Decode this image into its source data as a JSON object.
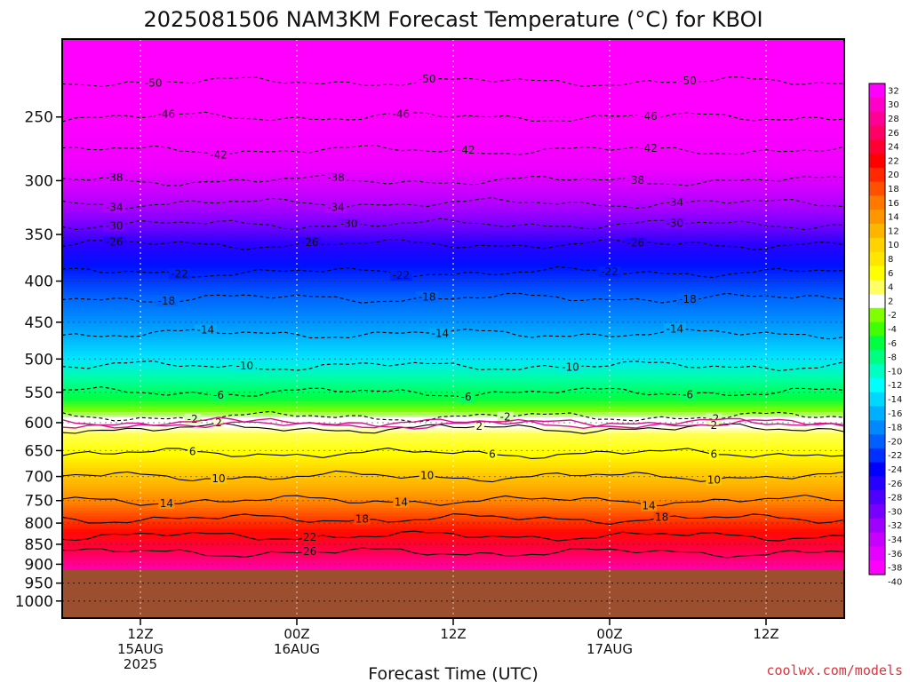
{
  "chart_data": {
    "type": "heatmap",
    "title": "2025081506 NAM3KM Forecast Temperature (°C) for KBOI",
    "xlabel": "Forecast Time (UTC)",
    "credit": "coolwx.com/models",
    "y_ticks": [
      "250",
      "300",
      "350",
      "400",
      "450",
      "500",
      "550",
      "600",
      "650",
      "700",
      "750",
      "800",
      "850",
      "900",
      "950",
      "1000"
    ],
    "y_tick_values": [
      250,
      300,
      350,
      400,
      450,
      500,
      550,
      600,
      650,
      700,
      750,
      800,
      850,
      900,
      950,
      1000
    ],
    "ylim": [
      1050,
      200
    ],
    "x_ticks": [
      {
        "line1": "12Z",
        "line2": "15AUG",
        "line3": "2025"
      },
      {
        "line1": "00Z",
        "line2": "16AUG",
        "line3": ""
      },
      {
        "line1": "12Z",
        "line2": "",
        "line3": ""
      },
      {
        "line1": "00Z",
        "line2": "17AUG",
        "line3": ""
      },
      {
        "line1": "12Z",
        "line2": "",
        "line3": ""
      }
    ],
    "x_tick_hours": [
      6,
      18,
      30,
      42,
      54
    ],
    "xlim_hours": [
      0,
      60
    ],
    "terrain_pressure": 915,
    "colorbar_ticks": [
      "32",
      "30",
      "28",
      "26",
      "24",
      "22",
      "20",
      "18",
      "16",
      "14",
      "12",
      "10",
      "8",
      "6",
      "4",
      "2",
      "-2",
      "-4",
      "-6",
      "-8",
      "-10",
      "-12",
      "-14",
      "-16",
      "-18",
      "-20",
      "-22",
      "-24",
      "-26",
      "-28",
      "-30",
      "-32",
      "-34",
      "-36",
      "-38",
      "-40"
    ],
    "colorbar_colors": [
      "#ff00ff",
      "#ff00c8",
      "#ff0096",
      "#ff0064",
      "#ff0032",
      "#ff0000",
      "#ff2800",
      "#ff5000",
      "#ff7800",
      "#ff9600",
      "#ffb400",
      "#ffd200",
      "#ffe600",
      "#ffff00",
      "#ffff64",
      "#ffffff",
      "#80ff00",
      "#40ff00",
      "#00ff40",
      "#00ff80",
      "#00ffc0",
      "#00ffff",
      "#00d8ff",
      "#00b0ff",
      "#0088ff",
      "#0060ff",
      "#0030ff",
      "#0000ff",
      "#2800ff",
      "#5000ff",
      "#7800ff",
      "#a000ff",
      "#c800ff",
      "#e600ff",
      "#ff00ff"
    ],
    "temperature_profile": [
      {
        "p": 200,
        "t": -54
      },
      {
        "p": 220,
        "t": -51
      },
      {
        "p": 250,
        "t": -46
      },
      {
        "p": 275,
        "t": -42
      },
      {
        "p": 300,
        "t": -38
      },
      {
        "p": 320,
        "t": -34
      },
      {
        "p": 340,
        "t": -30
      },
      {
        "p": 360,
        "t": -26
      },
      {
        "p": 390,
        "t": -22
      },
      {
        "p": 420,
        "t": -18
      },
      {
        "p": 465,
        "t": -14
      },
      {
        "p": 510,
        "t": -10
      },
      {
        "p": 550,
        "t": -6
      },
      {
        "p": 590,
        "t": -2
      },
      {
        "p": 610,
        "t": 2
      },
      {
        "p": 655,
        "t": 6
      },
      {
        "p": 700,
        "t": 10
      },
      {
        "p": 750,
        "t": 14
      },
      {
        "p": 790,
        "t": 18
      },
      {
        "p": 830,
        "t": 22
      },
      {
        "p": 870,
        "t": 26
      },
      {
        "p": 910,
        "t": 30
      }
    ],
    "contours": [
      {
        "level": -50,
        "dashed": true,
        "labels": [
          {
            "h": 7,
            "text": "-50"
          },
          {
            "h": 28,
            "text": "-50"
          },
          {
            "h": 48,
            "text": "-50"
          }
        ]
      },
      {
        "level": -46,
        "dashed": true,
        "labels": [
          {
            "h": 8,
            "text": "-46"
          },
          {
            "h": 26,
            "text": "-46"
          },
          {
            "h": 45,
            "text": "-46"
          }
        ]
      },
      {
        "level": -42,
        "dashed": true,
        "labels": [
          {
            "h": 12,
            "text": "-42"
          },
          {
            "h": 31,
            "text": "-42"
          },
          {
            "h": 45,
            "text": "-42"
          }
        ]
      },
      {
        "level": -38,
        "dashed": true,
        "labels": [
          {
            "h": 4,
            "text": "-38"
          },
          {
            "h": 21,
            "text": "-38"
          },
          {
            "h": 44,
            "text": "-38"
          }
        ]
      },
      {
        "level": -34,
        "dashed": true,
        "labels": [
          {
            "h": 4,
            "text": "-34"
          },
          {
            "h": 21,
            "text": "-34"
          },
          {
            "h": 47,
            "text": "-34"
          }
        ]
      },
      {
        "level": -30,
        "dashed": true,
        "labels": [
          {
            "h": 4,
            "text": "-30"
          },
          {
            "h": 22,
            "text": "-30"
          },
          {
            "h": 47,
            "text": "-30"
          }
        ]
      },
      {
        "level": -26,
        "dashed": true,
        "labels": [
          {
            "h": 4,
            "text": "-26"
          },
          {
            "h": 19,
            "text": "-26"
          },
          {
            "h": 44,
            "text": "-26"
          }
        ]
      },
      {
        "level": -22,
        "dashed": true,
        "labels": [
          {
            "h": 9,
            "text": "-22"
          },
          {
            "h": 26,
            "text": "-22"
          },
          {
            "h": 42,
            "text": "-22"
          }
        ]
      },
      {
        "level": -18,
        "dashed": true,
        "labels": [
          {
            "h": 8,
            "text": "-18"
          },
          {
            "h": 28,
            "text": "-18"
          },
          {
            "h": 48,
            "text": "-18"
          }
        ]
      },
      {
        "level": -14,
        "dashed": true,
        "labels": [
          {
            "h": 11,
            "text": "-14"
          },
          {
            "h": 29,
            "text": "-14"
          },
          {
            "h": 47,
            "text": "-14"
          }
        ]
      },
      {
        "level": -10,
        "dashed": true,
        "labels": [
          {
            "h": 14,
            "text": "-10"
          },
          {
            "h": 39,
            "text": "-10"
          }
        ]
      },
      {
        "level": -6,
        "dashed": true,
        "labels": [
          {
            "h": 12,
            "text": "-6"
          },
          {
            "h": 31,
            "text": "-6"
          },
          {
            "h": 48,
            "text": "-6"
          }
        ]
      },
      {
        "level": -2,
        "dashed": true,
        "labels": [
          {
            "h": 10,
            "text": "-2"
          },
          {
            "h": 34,
            "text": "-2"
          },
          {
            "h": 50,
            "text": "-2"
          }
        ]
      },
      {
        "level": 2,
        "dashed": false,
        "labels": [
          {
            "h": 12,
            "text": "2"
          },
          {
            "h": 32,
            "text": "2"
          },
          {
            "h": 50,
            "text": "2"
          }
        ]
      },
      {
        "level": 6,
        "dashed": false,
        "labels": [
          {
            "h": 10,
            "text": "6"
          },
          {
            "h": 33,
            "text": "6"
          },
          {
            "h": 50,
            "text": "6"
          }
        ]
      },
      {
        "level": 10,
        "dashed": false,
        "labels": [
          {
            "h": 12,
            "text": "10"
          },
          {
            "h": 28,
            "text": "10"
          },
          {
            "h": 50,
            "text": "10"
          }
        ]
      },
      {
        "level": 14,
        "dashed": false,
        "labels": [
          {
            "h": 8,
            "text": "14"
          },
          {
            "h": 26,
            "text": "14"
          },
          {
            "h": 45,
            "text": "14"
          }
        ]
      },
      {
        "level": 18,
        "dashed": false,
        "labels": [
          {
            "h": 23,
            "text": "18"
          },
          {
            "h": 46,
            "text": "18"
          }
        ]
      },
      {
        "level": 22,
        "dashed": false,
        "labels": [
          {
            "h": 19,
            "text": "22"
          }
        ]
      },
      {
        "level": 26,
        "dashed": false,
        "labels": [
          {
            "h": 19,
            "text": "26"
          }
        ]
      }
    ]
  }
}
